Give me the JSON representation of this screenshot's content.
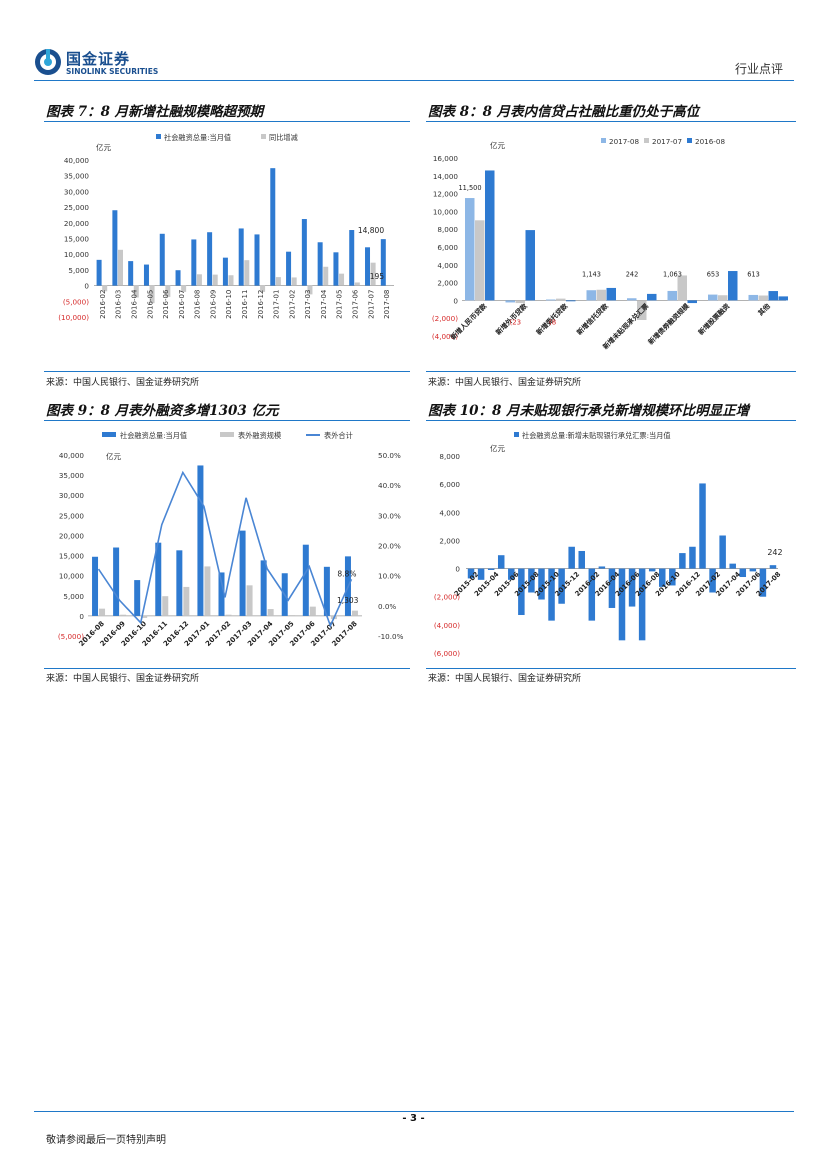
{
  "header": {
    "logo_cn": "国金证券",
    "logo_en": "SINOLINK SECURITIES",
    "doc_type": "行业点评"
  },
  "footer": {
    "page_number": "- 3 -",
    "disclaimer": "敬请参阅最后一页特别声明"
  },
  "figures": [
    {
      "title": "图表 7：8 月新增社融规模略超预期",
      "source": "来源：中国人民银行、国金证券研究所"
    },
    {
      "title": "图表 8：8 月表内信贷占社融比重仍处于高位",
      "source": "来源：中国人民银行、国金证券研究所"
    },
    {
      "title": "图表 9：8 月表外融资多增1303 亿元",
      "source": "来源：中国人民银行、国金证券研究所"
    },
    {
      "title": "图表 10：8 月未贴现银行承兑新增规模环比明显正增",
      "source": "来源：中国人民银行、国金证券研究所"
    }
  ],
  "colors": {
    "blue": "#2e7ad1",
    "gray": "#c8c8c8",
    "line": "#4a86d4",
    "red": "#d62b2b"
  },
  "chart_data": [
    {
      "type": "bar",
      "unit_label": "亿元",
      "categories": [
        "2016-02",
        "2016-03",
        "2016-04",
        "2016-05",
        "2016-06",
        "2016-07",
        "2016-08",
        "2016-09",
        "2016-10",
        "2016-11",
        "2016-12",
        "2017-01",
        "2017-02",
        "2017-03",
        "2017-04",
        "2017-05",
        "2017-06",
        "2017-07",
        "2017-08"
      ],
      "series": [
        {
          "name": "社会融资总量:当月值",
          "values": [
            8200,
            24000,
            7800,
            6700,
            16500,
            4900,
            14700,
            17000,
            8900,
            18200,
            16300,
            37400,
            10800,
            21200,
            13800,
            10600,
            17700,
            12200,
            14800
          ]
        },
        {
          "name": "同比增减",
          "values": [
            -1800,
            11400,
            -3800,
            -5600,
            -3600,
            -2000,
            3600,
            3500,
            3300,
            8100,
            -2000,
            2700,
            2600,
            -2800,
            6000,
            3800,
            1000,
            7300,
            195
          ]
        }
      ],
      "ylim": [
        -10000,
        40000
      ],
      "y_ticks": [
        "40,000",
        "35,000",
        "30,000",
        "25,000",
        "20,000",
        "15,000",
        "10,000",
        "5,000",
        "0",
        "(5,000)",
        "(10,000)"
      ],
      "annotations": [
        "14,800",
        "195"
      ]
    },
    {
      "type": "bar",
      "unit_label": "亿元",
      "categories": [
        "新增人民币贷款",
        "新增外币贷款",
        "新增委托贷款",
        "新增信托贷款",
        "新增未贴现承兑汇票",
        "新增债券融资规模",
        "新增股票融资",
        "其他"
      ],
      "series": [
        {
          "name": "2017-08",
          "values": [
            11500,
            -230,
            100,
            1143,
            242,
            1063,
            653,
            613
          ]
        },
        {
          "name": "2017-07",
          "values": [
            9000,
            -300,
            200,
            1200,
            -2200,
            2800,
            580,
            550
          ]
        },
        {
          "name": "2016-08",
          "values": [
            14600,
            7900,
            -100,
            1400,
            730,
            -300,
            3300,
            1050
          ]
        }
      ],
      "extra_bar": {
        "category": "其他",
        "value": 450
      },
      "ylim": [
        -4000,
        16000
      ],
      "y_ticks": [
        "16,000",
        "14,000",
        "12,000",
        "10,000",
        "8,000",
        "6,000",
        "4,000",
        "2,000",
        "0",
        "(2,000)",
        "(4,000)"
      ],
      "annotations": [
        "11,500",
        "1,143",
        "242",
        "1,063",
        "653",
        "613",
        "(23",
        "(8"
      ]
    },
    {
      "type": "bar+line",
      "unit_label": "亿元",
      "categories": [
        "2016-08",
        "2016-09",
        "2016-10",
        "2016-11",
        "2016-12",
        "2017-01",
        "2017-02",
        "2017-03",
        "2017-04",
        "2017-05",
        "2017-06",
        "2017-07",
        "2017-08"
      ],
      "series": [
        {
          "name": "社会融资总量:当月值",
          "values": [
            14700,
            17000,
            8900,
            18200,
            16300,
            37400,
            10800,
            21200,
            13800,
            10600,
            17700,
            12200,
            14800
          ]
        },
        {
          "name": "表外融资规模",
          "values": [
            1800,
            300,
            -500,
            4900,
            7200,
            12300,
            300,
            7600,
            1700,
            200,
            2300,
            -800,
            1303
          ]
        },
        {
          "name": "表外合计",
          "axis": "right",
          "values": [
            12.2,
            1.8,
            -5.6,
            26.9,
            44.2,
            33.0,
            2.8,
            35.8,
            12.3,
            1.9,
            13.0,
            -6.6,
            8.8
          ]
        }
      ],
      "ylim_left": [
        -5000,
        40000
      ],
      "ylim_right": [
        -10,
        50
      ],
      "y_ticks_left": [
        "40,000",
        "35,000",
        "30,000",
        "25,000",
        "20,000",
        "15,000",
        "10,000",
        "5,000",
        "0",
        "(5,000)"
      ],
      "y_ticks_right": [
        "50.0%",
        "40.0%",
        "30.0%",
        "20.0%",
        "10.0%",
        "0.0%",
        "-10.0%"
      ],
      "annotations": [
        "8.8%",
        "1,303"
      ]
    },
    {
      "type": "bar",
      "unit_label": "亿元",
      "categories": [
        "2015-02",
        "2015-03",
        "2015-04",
        "2015-05",
        "2015-06",
        "2015-07",
        "2015-08",
        "2015-09",
        "2015-10",
        "2015-11",
        "2015-12",
        "2016-01",
        "2016-02",
        "2016-03",
        "2016-04",
        "2016-05",
        "2016-06",
        "2016-07",
        "2016-08",
        "2016-09",
        "2016-10",
        "2016-11",
        "2016-12",
        "2017-01",
        "2017-02",
        "2017-03",
        "2017-04",
        "2017-05",
        "2017-06",
        "2017-07",
        "2017-08"
      ],
      "x_labels": [
        "2015-02",
        "2015-04",
        "2015-06",
        "2015-08",
        "2015-10",
        "2015-12",
        "2016-02",
        "2016-04",
        "2016-06",
        "2016-08",
        "2016-10",
        "2016-12",
        "2017-02",
        "2017-04",
        "2017-06",
        "2017-08"
      ],
      "series": [
        {
          "name": "社会融资总量:新增未贴现银行承兑汇票:当月值",
          "values": [
            -700,
            -800,
            -100,
            950,
            -800,
            -3300,
            -1700,
            -2200,
            -3700,
            -2500,
            1550,
            1250,
            -3700,
            150,
            -2800,
            -5100,
            -2700,
            -5100,
            -200,
            -1300,
            -1200,
            1100,
            1550,
            6050,
            -1700,
            2350,
            350,
            -600,
            -200,
            -2000,
            242
          ]
        }
      ],
      "ylim": [
        -6000,
        8000
      ],
      "y_ticks": [
        "8,000",
        "6,000",
        "4,000",
        "2,000",
        "0",
        "(2,000)",
        "(4,000)",
        "(6,000)"
      ],
      "annotations": [
        "242"
      ]
    }
  ]
}
